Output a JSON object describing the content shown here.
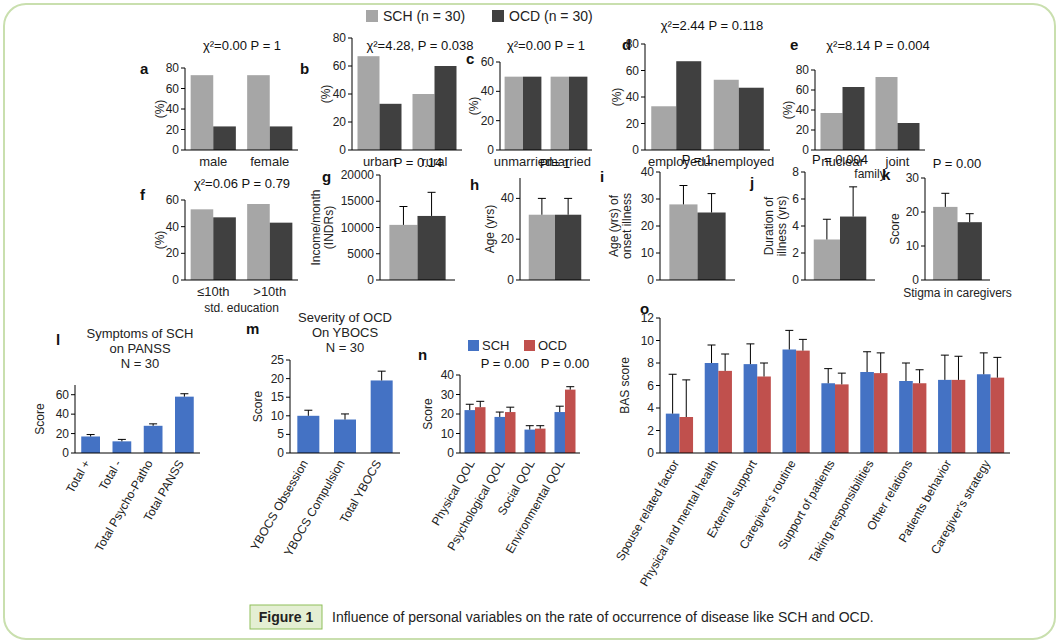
{
  "chart_data": [
    {
      "panel": "a",
      "type": "bar",
      "annotations": [
        "χ²=0.00 P = 1"
      ],
      "ylabel": "(%)",
      "categories": [
        "male",
        "female"
      ],
      "series": [
        {
          "color": "#a6a6a6",
          "values": [
            73,
            73
          ]
        },
        {
          "color": "#404040",
          "values": [
            23,
            23
          ]
        }
      ],
      "ylim": [
        0,
        80
      ],
      "yticks": [
        0,
        20,
        40,
        60,
        80
      ]
    },
    {
      "panel": "b",
      "type": "bar",
      "annotations": [
        "χ²=4.28, P = 0.038"
      ],
      "ylabel": "(%)",
      "categories": [
        "urban",
        "rural"
      ],
      "series": [
        {
          "color": "#a6a6a6",
          "values": [
            67,
            40
          ]
        },
        {
          "color": "#404040",
          "values": [
            33,
            60
          ]
        }
      ],
      "ylim": [
        0,
        80
      ],
      "yticks": [
        0,
        20,
        40,
        60,
        80
      ]
    },
    {
      "panel": "c",
      "type": "bar",
      "annotations": [
        "χ²=0.00 P = 1"
      ],
      "ylabel": "(%)",
      "categories": [
        "unmarried",
        "married"
      ],
      "series": [
        {
          "color": "#a6a6a6",
          "values": [
            50,
            50
          ]
        },
        {
          "color": "#404040",
          "values": [
            50,
            50
          ]
        }
      ],
      "ylim": [
        0,
        60
      ],
      "yticks": [
        0,
        20,
        40,
        60
      ]
    },
    {
      "panel": "d",
      "type": "bar",
      "annotations": [
        "χ²=2.44 P = 0.118"
      ],
      "ylabel": "(%)",
      "categories": [
        "employed",
        "unemployed"
      ],
      "series": [
        {
          "color": "#a6a6a6",
          "values": [
            33,
            53
          ]
        },
        {
          "color": "#404040",
          "values": [
            67,
            47
          ]
        }
      ],
      "ylim": [
        0,
        80
      ],
      "yticks": [
        0,
        20,
        40,
        60,
        80
      ]
    },
    {
      "panel": "e",
      "type": "bar",
      "annotations": [
        "χ²=8.14 P = 0.004"
      ],
      "ylabel": "(%)",
      "xlabel": "family",
      "categories": [
        "nuclear",
        "joint"
      ],
      "series": [
        {
          "color": "#a6a6a6",
          "values": [
            37,
            73
          ]
        },
        {
          "color": "#404040",
          "values": [
            63,
            27
          ]
        }
      ],
      "ylim": [
        0,
        80
      ],
      "yticks": [
        0,
        20,
        40,
        60,
        80
      ]
    },
    {
      "panel": "f",
      "type": "bar",
      "annotations": [
        "χ²=0.06 P = 0.79"
      ],
      "ylabel": "(%)",
      "xlabel": "std. education",
      "categories": [
        "≤10th",
        ">10th"
      ],
      "series": [
        {
          "color": "#a6a6a6",
          "values": [
            53,
            57
          ]
        },
        {
          "color": "#404040",
          "values": [
            47,
            43
          ]
        }
      ],
      "ylim": [
        0,
        60
      ],
      "yticks": [
        0,
        20,
        40,
        60
      ]
    },
    {
      "panel": "g",
      "type": "bar",
      "annotations": [
        "P = 0.14"
      ],
      "ylabel": "Income/month (INDRs)",
      "categories": [
        null
      ],
      "series": [
        {
          "color": "#a6a6a6",
          "values": [
            10500
          ],
          "errors": [
            3500
          ]
        },
        {
          "color": "#404040",
          "values": [
            12200
          ],
          "errors": [
            4500
          ]
        }
      ],
      "ylim": [
        0,
        20000
      ],
      "yticks": [
        0,
        5000,
        10000,
        15000,
        20000
      ]
    },
    {
      "panel": "h",
      "type": "bar",
      "annotations": [
        "P = 1"
      ],
      "ylabel": "Age (yrs)",
      "categories": [
        null
      ],
      "series": [
        {
          "color": "#a6a6a6",
          "values": [
            32
          ],
          "errors": [
            8
          ]
        },
        {
          "color": "#404040",
          "values": [
            32
          ],
          "errors": [
            8
          ]
        }
      ],
      "ylim": [
        0,
        50
      ],
      "yticks": [
        0,
        20,
        40
      ]
    },
    {
      "panel": "i",
      "type": "bar",
      "annotations": [
        "P = 1"
      ],
      "ylabel": "Age (yrs) of onset illness",
      "categories": [
        null
      ],
      "series": [
        {
          "color": "#a6a6a6",
          "values": [
            28
          ],
          "errors": [
            7
          ]
        },
        {
          "color": "#404040",
          "values": [
            25
          ],
          "errors": [
            7
          ]
        }
      ],
      "ylim": [
        0,
        40
      ],
      "yticks": [
        0,
        10,
        20,
        30,
        40
      ]
    },
    {
      "panel": "j",
      "type": "bar",
      "annotations": [
        "P = 0.004"
      ],
      "ylabel": "Duration of illness (yrs)",
      "categories": [
        null
      ],
      "series": [
        {
          "color": "#a6a6a6",
          "values": [
            3
          ],
          "errors": [
            1.5
          ]
        },
        {
          "color": "#404040",
          "values": [
            4.7
          ],
          "errors": [
            2.2
          ]
        }
      ],
      "ylim": [
        0,
        8
      ],
      "yticks": [
        0,
        2,
        4,
        6,
        8
      ]
    },
    {
      "panel": "k",
      "type": "bar",
      "annotations": [
        "P = 0.00"
      ],
      "ylabel": "Score",
      "xlabel": "Stigma in caregivers",
      "categories": [
        null
      ],
      "series": [
        {
          "color": "#a6a6a6",
          "values": [
            21.5
          ],
          "errors": [
            4
          ]
        },
        {
          "color": "#404040",
          "values": [
            17
          ],
          "errors": [
            2.5
          ]
        }
      ],
      "ylim": [
        0,
        30
      ],
      "yticks": [
        0,
        10,
        20,
        30
      ]
    },
    {
      "panel": "l",
      "type": "bar",
      "title": "Symptoms of SCH on PANSS",
      "subtitle": "N = 30",
      "ylabel": "Score",
      "categories": [
        "Total +",
        "Total -",
        "Total Psycho-Patho",
        "Total PANSS"
      ],
      "series": [
        {
          "color": "#4472c4",
          "values": [
            17,
            12,
            28,
            58
          ],
          "errors": [
            2,
            2,
            2,
            3
          ]
        }
      ],
      "ylim": [
        0,
        70
      ],
      "yticks": [
        0,
        20,
        40,
        60
      ]
    },
    {
      "panel": "m",
      "type": "bar",
      "title": "Severity of OCD On YBOCS",
      "subtitle": "N = 30",
      "ylabel": "Score",
      "categories": [
        "YBOCS Obsession",
        "YBOCS Compulsion",
        "Total YBOCS"
      ],
      "series": [
        {
          "color": "#4472c4",
          "values": [
            10,
            9,
            19.5
          ],
          "errors": [
            1.5,
            1.5,
            2.5
          ]
        }
      ],
      "ylim": [
        0,
        25
      ],
      "yticks": [
        0,
        5,
        10,
        15,
        20,
        25
      ]
    },
    {
      "panel": "n",
      "type": "bar",
      "annotations": [
        "P = 0.00",
        "P = 0.00"
      ],
      "ylabel": "Score",
      "legend": "top",
      "categories": [
        "Physical QOL",
        "Psychological QOL",
        "Social QOL",
        "Environmental QOL"
      ],
      "series": [
        {
          "name": "SCH",
          "color": "#4472c4",
          "values": [
            22,
            18.5,
            12,
            21
          ],
          "errors": [
            3,
            2.5,
            2,
            3
          ]
        },
        {
          "name": "OCD",
          "color": "#c0504d",
          "values": [
            23.5,
            21,
            12.5,
            32.5
          ],
          "errors": [
            3,
            2.5,
            1.5,
            1.5
          ]
        }
      ],
      "ylim": [
        0,
        40
      ],
      "yticks": [
        0,
        10,
        20,
        30,
        40
      ]
    },
    {
      "panel": "o",
      "type": "bar",
      "ylabel": "BAS score",
      "categories": [
        "Spouse related factor",
        "Physical and mental health",
        "External support",
        "Caregiver's routine",
        "Support of patients",
        "Taking responsibilities",
        "Other relations",
        "Patients behavior",
        "Caregiver's strategy"
      ],
      "series": [
        {
          "color": "#4472c4",
          "values": [
            3.5,
            8,
            7.9,
            9.2,
            6.2,
            7.2,
            6.4,
            6.5,
            7
          ],
          "errors": [
            3.5,
            1.6,
            1.8,
            1.7,
            1.3,
            1.8,
            1.6,
            2.2,
            1.9
          ]
        },
        {
          "color": "#c0504d",
          "values": [
            3.2,
            7.3,
            6.8,
            9.1,
            6.1,
            7.1,
            6.2,
            6.5,
            6.7
          ],
          "errors": [
            3.3,
            1.5,
            1.2,
            1,
            1,
            1.8,
            1.2,
            2.1,
            1.8
          ]
        }
      ],
      "ylim": [
        0,
        12
      ],
      "yticks": [
        0,
        2,
        4,
        6,
        8,
        10,
        12
      ]
    }
  ],
  "figure_legend": [
    {
      "name": "SCH (n = 30)",
      "color": "#a6a6a6"
    },
    {
      "name": "OCD (n = 30)",
      "color": "#404040"
    }
  ],
  "caption": {
    "label": "Figure 1",
    "text": "Influence of personal variables on the rate of occurrence of disease like SCH and OCD."
  }
}
